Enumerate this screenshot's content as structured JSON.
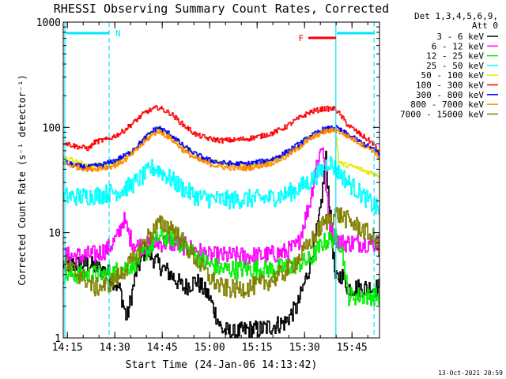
{
  "chart_data": {
    "type": "line",
    "title": "RHESSI Observing Summary Count Rates, Corrected",
    "ylabel": "Corrected Count Rate (s⁻¹ detector⁻¹)",
    "xlabel": "Start Time (24-Jan-06 14:13:42)",
    "footer": "13-Oct-2021 20:59",
    "y_scale": "log",
    "ylim": [
      1,
      1000
    ],
    "y_ticks": [
      1,
      10,
      100,
      1000
    ],
    "y_tick_labels": [
      "1",
      "10",
      "100",
      "1000"
    ],
    "x_unit": "minutes after 14:13:42",
    "xlim": [
      0,
      100
    ],
    "x_ticks": [
      1.3,
      16.3,
      31.3,
      46.3,
      61.3,
      76.3,
      91.3
    ],
    "x_tick_labels": [
      "14:15",
      "14:30",
      "14:45",
      "15:00",
      "15:15",
      "15:30",
      "15:45"
    ],
    "legend_header": [
      "Det 1,3,4,5,6,9,",
      "Att 0"
    ],
    "legend_position": "right",
    "annotations": {
      "night_label": "N",
      "flare_label": "F",
      "night_lines": [
        14.5,
        98.3
      ],
      "orbit_lines": [
        0.5,
        86.2
      ],
      "flare_bar": [
        77.5,
        86.2
      ],
      "night_bars": [
        [
          1.0,
          14.5
        ],
        [
          86.5,
          98.3
        ]
      ]
    },
    "series": [
      {
        "name": "3 - 6 keV",
        "color": "#000000",
        "x": [
          0,
          8,
          14,
          18,
          20,
          23,
          26,
          30,
          34,
          38,
          42,
          46,
          50,
          54,
          58,
          62,
          66,
          70,
          74,
          78,
          81,
          83,
          86,
          88,
          90
        ],
        "y": [
          5.0,
          5.0,
          4.2,
          2.8,
          1.5,
          4.2,
          7.0,
          5.0,
          4.0,
          3.0,
          3.5,
          2.5,
          1.2,
          1.1,
          1.2,
          1.2,
          1.3,
          1.4,
          2.0,
          5.0,
          14.0,
          50.0,
          3.5,
          4.0,
          3.0
        ]
      },
      {
        "name": "6 - 12 keV",
        "color": "#ff00ff",
        "x": [
          0,
          5,
          10,
          14,
          17,
          19,
          21,
          23,
          26,
          30,
          34,
          38,
          42,
          46,
          50,
          54,
          58,
          62,
          66,
          70,
          74,
          78,
          80,
          82,
          84,
          86,
          88
        ],
        "y": [
          6.0,
          6.0,
          6.2,
          7.0,
          9.0,
          13.5,
          9.0,
          7.5,
          7.5,
          8.0,
          8.0,
          7.5,
          6.8,
          6.0,
          6.0,
          6.0,
          6.0,
          6.0,
          6.2,
          6.5,
          7.5,
          20.0,
          45.0,
          70.0,
          12.0,
          9.0,
          8.0
        ]
      },
      {
        "name": "12 - 25 keV",
        "color": "#00ee00",
        "x": [
          0,
          8,
          14,
          18,
          22,
          26,
          30,
          34,
          38,
          42,
          46,
          50,
          54,
          58,
          62,
          66,
          70,
          74,
          78,
          82,
          86,
          88,
          90,
          95,
          100
        ],
        "y": [
          4.0,
          4.0,
          4.0,
          4.5,
          5.0,
          6.5,
          9.0,
          9.0,
          7.5,
          6.0,
          5.0,
          4.5,
          4.5,
          4.5,
          4.5,
          4.5,
          4.7,
          5.0,
          5.5,
          8.0,
          9.0,
          7.5,
          2.5,
          2.5,
          2.5
        ]
      },
      {
        "name": "25 - 50 keV",
        "color": "#00ffff",
        "x": [
          0,
          6,
          12,
          18,
          22,
          26,
          28,
          30,
          34,
          38,
          42,
          46,
          50,
          54,
          58,
          62,
          66,
          70,
          74,
          78,
          82,
          84,
          86,
          88,
          90,
          95,
          100
        ],
        "y": [
          22,
          22,
          23,
          25,
          29,
          36,
          41,
          40,
          32,
          26,
          22,
          21,
          20.5,
          20.5,
          21,
          21,
          21.5,
          23,
          26,
          31,
          40,
          48,
          40,
          35,
          30,
          22,
          16
        ]
      },
      {
        "name": "50 - 100 keV",
        "color": "#e8e800",
        "x": [
          0,
          4,
          8,
          12,
          16,
          20,
          24,
          28,
          30,
          34,
          38,
          42,
          46,
          50,
          54,
          58,
          62,
          66,
          70,
          74,
          78,
          82,
          86,
          87,
          88,
          92,
          96,
          100
        ],
        "y": [
          52,
          47,
          43,
          44,
          46,
          52,
          68,
          88,
          95,
          82,
          65,
          54,
          48,
          45,
          44,
          43,
          45,
          48,
          55,
          66,
          80,
          92,
          97,
          48,
          45,
          42,
          38,
          35
        ]
      },
      {
        "name": "100 - 300 keV",
        "color": "#ff0000",
        "x": [
          0,
          4,
          8,
          10,
          14,
          18,
          22,
          26,
          30,
          34,
          38,
          42,
          46,
          50,
          54,
          58,
          62,
          66,
          70,
          74,
          78,
          82,
          86,
          90,
          94,
          98,
          100
        ],
        "y": [
          72,
          66,
          63,
          73,
          77,
          88,
          110,
          140,
          155,
          135,
          105,
          85,
          78,
          75,
          76,
          78,
          82,
          88,
          100,
          120,
          140,
          150,
          150,
          105,
          85,
          70,
          55
        ]
      },
      {
        "name": "300 - 800 keV",
        "color": "#0000ff",
        "x": [
          0,
          4,
          8,
          12,
          16,
          20,
          24,
          28,
          30,
          34,
          38,
          42,
          46,
          50,
          54,
          58,
          62,
          66,
          70,
          74,
          78,
          82,
          86,
          90,
          94,
          98,
          100
        ],
        "y": [
          47,
          43,
          42,
          44,
          48,
          55,
          70,
          92,
          100,
          85,
          66,
          55,
          49,
          46,
          45,
          45,
          47,
          50,
          57,
          68,
          82,
          95,
          100,
          85,
          72,
          62,
          55
        ]
      },
      {
        "name": "800 - 7000 keV",
        "color": "#ff8800",
        "x": [
          0,
          4,
          8,
          12,
          16,
          20,
          24,
          28,
          30,
          34,
          38,
          42,
          46,
          50,
          54,
          58,
          62,
          66,
          70,
          74,
          78,
          82,
          86,
          90,
          94,
          98,
          100
        ],
        "y": [
          46,
          42,
          40,
          41,
          43,
          50,
          65,
          85,
          92,
          78,
          60,
          50,
          45,
          42,
          41,
          41,
          43,
          46,
          52,
          63,
          78,
          90,
          95,
          82,
          70,
          60,
          50
        ]
      },
      {
        "name": "7000 - 15000 keV",
        "color": "#808000",
        "x": [
          0,
          6,
          10,
          14,
          18,
          22,
          26,
          30,
          34,
          38,
          42,
          46,
          50,
          54,
          58,
          62,
          66,
          70,
          74,
          78,
          82,
          86,
          88,
          90,
          94,
          98,
          100
        ],
        "y": [
          5.0,
          3.8,
          3.0,
          3.2,
          4.0,
          5.5,
          8.5,
          12.0,
          11.5,
          8.0,
          5.5,
          3.8,
          3.0,
          2.9,
          3.0,
          3.2,
          3.6,
          4.2,
          5.5,
          8.0,
          12.0,
          15.0,
          14.5,
          13.0,
          11.0,
          9.0,
          7.0
        ]
      }
    ]
  }
}
